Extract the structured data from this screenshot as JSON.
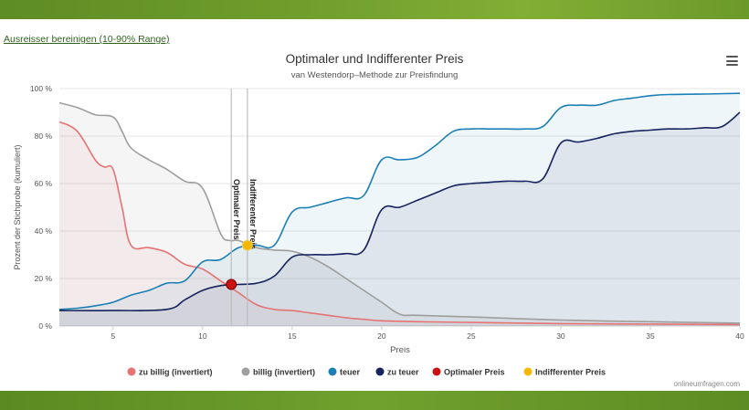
{
  "filter_link": "Ausreisser bereinigen (10-90% Range)",
  "credits": "onlineumfragen.com",
  "colors": {
    "zu_billig": "#e57373",
    "billig": "#9e9e9e",
    "teuer": "#1a7fb5",
    "zu_teuer": "#16235e",
    "optimal": "#cc1111",
    "indifferent": "#f5b800"
  },
  "chart_data": {
    "type": "line",
    "title": "Optimaler und Indifferenter Preis",
    "subtitle": "van Westendorp–Methode zur Preisfindung",
    "xlabel": "Preis",
    "ylabel": "Prozent der Stichprobe (kumuliert)",
    "xlim": [
      2,
      40
    ],
    "ylim": [
      0,
      100
    ],
    "x_ticks": [
      5,
      10,
      15,
      20,
      25,
      30,
      35,
      40
    ],
    "y_ticks": [
      0,
      20,
      40,
      60,
      80,
      100
    ],
    "y_tick_labels": [
      "0 %",
      "20 %",
      "40 %",
      "60 %",
      "80 %",
      "100 %"
    ],
    "series": [
      {
        "name": "zu billig (invertiert)",
        "key": "zu_billig",
        "points": [
          [
            2,
            86
          ],
          [
            3,
            82
          ],
          [
            4,
            70
          ],
          [
            4.5,
            67
          ],
          [
            5,
            66
          ],
          [
            5.5,
            50
          ],
          [
            6,
            34
          ],
          [
            7,
            33
          ],
          [
            8,
            31
          ],
          [
            9,
            26
          ],
          [
            10,
            24
          ],
          [
            11,
            19
          ],
          [
            12,
            14
          ],
          [
            13,
            9
          ],
          [
            14,
            7
          ],
          [
            15,
            6.5
          ],
          [
            16,
            5.5
          ],
          [
            17,
            4.5
          ],
          [
            18,
            3.5
          ],
          [
            19,
            2.8
          ],
          [
            20,
            2.2
          ],
          [
            22,
            1.8
          ],
          [
            25,
            1.5
          ],
          [
            30,
            1.0
          ],
          [
            35,
            0.8
          ],
          [
            40,
            0.6
          ]
        ]
      },
      {
        "name": "billig (invertiert)",
        "key": "billig",
        "points": [
          [
            2,
            94
          ],
          [
            3,
            92
          ],
          [
            4,
            89
          ],
          [
            5,
            88
          ],
          [
            5.5,
            82
          ],
          [
            6,
            75
          ],
          [
            7,
            70
          ],
          [
            8,
            66
          ],
          [
            9,
            61
          ],
          [
            10,
            58
          ],
          [
            11,
            39
          ],
          [
            11.5,
            36
          ],
          [
            12,
            36
          ],
          [
            13,
            33
          ],
          [
            14,
            32
          ],
          [
            15,
            31.5
          ],
          [
            16,
            29
          ],
          [
            17,
            25
          ],
          [
            18,
            20
          ],
          [
            19,
            15
          ],
          [
            20,
            10
          ],
          [
            21,
            5
          ],
          [
            22,
            4.5
          ],
          [
            25,
            3.8
          ],
          [
            30,
            2.5
          ],
          [
            35,
            1.8
          ],
          [
            40,
            1.2
          ]
        ]
      },
      {
        "name": "teuer",
        "key": "teuer",
        "points": [
          [
            2,
            7
          ],
          [
            3,
            7.5
          ],
          [
            4,
            8.5
          ],
          [
            5,
            10
          ],
          [
            6,
            13
          ],
          [
            7,
            15
          ],
          [
            8,
            18
          ],
          [
            9,
            19
          ],
          [
            10,
            27
          ],
          [
            11,
            28
          ],
          [
            12,
            33
          ],
          [
            13,
            34
          ],
          [
            14,
            34
          ],
          [
            15,
            48
          ],
          [
            16,
            50
          ],
          [
            17,
            52
          ],
          [
            18,
            54
          ],
          [
            19,
            55
          ],
          [
            20,
            70
          ],
          [
            21,
            70
          ],
          [
            22,
            71
          ],
          [
            23,
            76
          ],
          [
            24,
            82
          ],
          [
            25,
            83
          ],
          [
            26,
            83
          ],
          [
            27,
            83
          ],
          [
            28,
            83
          ],
          [
            29,
            84
          ],
          [
            30,
            92
          ],
          [
            31,
            93
          ],
          [
            32,
            93
          ],
          [
            33,
            95
          ],
          [
            34,
            96
          ],
          [
            35,
            97
          ],
          [
            36,
            97.5
          ],
          [
            38,
            97.7
          ],
          [
            40,
            98
          ]
        ]
      },
      {
        "name": "zu teuer",
        "key": "zu_teuer",
        "points": [
          [
            2,
            6.5
          ],
          [
            5,
            6.5
          ],
          [
            8,
            7
          ],
          [
            9,
            11
          ],
          [
            10,
            15
          ],
          [
            11,
            17
          ],
          [
            12,
            17.5
          ],
          [
            13,
            18
          ],
          [
            14,
            21
          ],
          [
            15,
            29
          ],
          [
            16,
            30
          ],
          [
            17,
            30
          ],
          [
            18,
            30.5
          ],
          [
            19,
            32
          ],
          [
            20,
            49
          ],
          [
            21,
            50
          ],
          [
            22,
            53
          ],
          [
            23,
            56
          ],
          [
            24,
            59
          ],
          [
            25,
            60
          ],
          [
            26,
            60.5
          ],
          [
            27,
            61
          ],
          [
            28,
            61
          ],
          [
            29,
            62
          ],
          [
            30,
            77
          ],
          [
            31,
            77.5
          ],
          [
            32,
            79
          ],
          [
            33,
            81
          ],
          [
            34,
            82
          ],
          [
            35,
            82.5
          ],
          [
            36,
            83
          ],
          [
            37,
            83
          ],
          [
            38,
            83.5
          ],
          [
            39,
            84
          ],
          [
            40,
            90
          ]
        ]
      }
    ],
    "markers": [
      {
        "name": "Optimaler Preis",
        "key": "optimal",
        "x": 11.6,
        "y": 17.5,
        "annotation": "Optimaler Preis"
      },
      {
        "name": "Indifferenter Preis",
        "key": "indifferent",
        "x": 12.5,
        "y": 34,
        "annotation": "Indifferenter Preis"
      }
    ],
    "legend": [
      {
        "label": "zu billig (invertiert)",
        "key": "zu_billig"
      },
      {
        "label": "billig (invertiert)",
        "key": "billig"
      },
      {
        "label": "teuer",
        "key": "teuer"
      },
      {
        "label": "zu teuer",
        "key": "zu_teuer"
      },
      {
        "label": "Optimaler Preis",
        "key": "optimal"
      },
      {
        "label": "Indifferenter Preis",
        "key": "indifferent"
      }
    ],
    "legend_position": "bottom"
  }
}
